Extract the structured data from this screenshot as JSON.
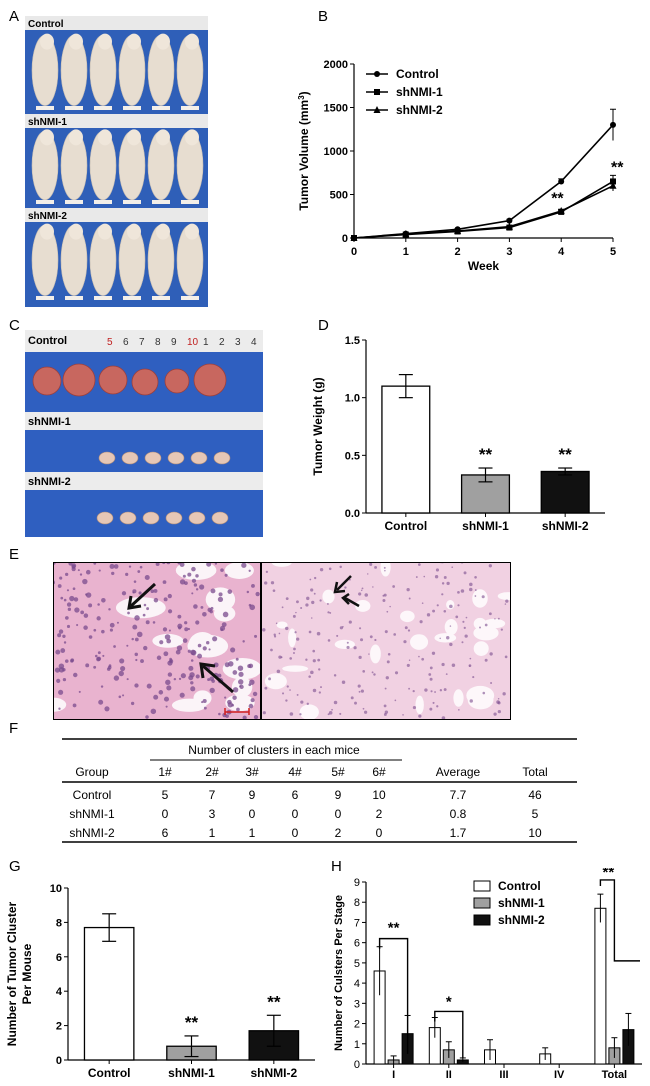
{
  "panels": {
    "a": "A",
    "b": "B",
    "c": "C",
    "d": "D",
    "e": "E",
    "f": "F",
    "g": "G",
    "h": "H"
  },
  "photo_a": {
    "labels": [
      "Control",
      "shNMI-1",
      "shNMI-2"
    ],
    "colors": {
      "backdrop": "#2f5fb8",
      "ruler": "#e9e9e9",
      "mouse": "#e7ddd0"
    }
  },
  "photo_c": {
    "labels": [
      "Control",
      "shNMI-1",
      "shNMI-2"
    ],
    "ruler_numbers": [
      "5",
      "6",
      "7",
      "8",
      "9",
      "10",
      "1",
      "2",
      "3",
      "4"
    ],
    "colors": {
      "backdrop": "#2f5fc0",
      "tumor_large": "#c8675f",
      "tumor_small": "#e6c7b6"
    }
  },
  "histology_e": {
    "colors": {
      "tissue": "#e9b3cf",
      "nuclei": "#7a4b8e",
      "arrow": "#111111"
    }
  },
  "chart_data": [
    {
      "id": "B",
      "type": "line",
      "xlabel": "Week",
      "ylabel": "Tumor Volume (mm",
      "ylabel_sup": "3",
      "ylabel_end": ")",
      "x": [
        0,
        1,
        2,
        3,
        4,
        5
      ],
      "xlim": [
        0,
        5
      ],
      "ylim": [
        0,
        2000
      ],
      "yticks": [
        0,
        500,
        1000,
        1500,
        2000
      ],
      "series": [
        {
          "name": "Control",
          "marker": "circle",
          "values": [
            0,
            50,
            100,
            200,
            650,
            1300
          ],
          "err": [
            0,
            5,
            8,
            15,
            30,
            180
          ]
        },
        {
          "name": "shNMI-1",
          "marker": "square",
          "values": [
            0,
            40,
            75,
            120,
            300,
            650
          ],
          "err": [
            0,
            5,
            6,
            10,
            20,
            70
          ]
        },
        {
          "name": "shNMI-2",
          "marker": "triangle",
          "values": [
            0,
            45,
            80,
            130,
            310,
            600
          ],
          "err": [
            0,
            5,
            6,
            10,
            20,
            60
          ]
        }
      ],
      "annotations": [
        {
          "text": "**",
          "x": 4,
          "y": 330
        },
        {
          "text": "**",
          "x": 5,
          "y": 720
        }
      ],
      "legend": "top-left"
    },
    {
      "id": "D",
      "type": "bar",
      "ylabel": "Tumor Weight (g)",
      "categories": [
        "Control",
        "shNMI-1",
        "shNMI-2"
      ],
      "values": [
        1.1,
        0.33,
        0.36
      ],
      "err": [
        0.1,
        0.06,
        0.03
      ],
      "colors": [
        "#ffffff",
        "#a0a0a0",
        "#111111"
      ],
      "ylim": [
        0,
        1.5
      ],
      "yticks": [
        "0.0",
        "0.5",
        "1.0",
        "1.5"
      ],
      "annotations": [
        "",
        "**",
        "**"
      ]
    },
    {
      "id": "F",
      "type": "table",
      "header_span": "Number of clusters in each mice",
      "columns": [
        "Group",
        "1#",
        "2#",
        "3#",
        "4#",
        "5#",
        "6#",
        "Average",
        "Total"
      ],
      "rows": [
        [
          "Control",
          "5",
          "7",
          "9",
          "6",
          "9",
          "10",
          "7.7",
          "46"
        ],
        [
          "shNMI-1",
          "0",
          "3",
          "0",
          "0",
          "0",
          "2",
          "0.8",
          "5"
        ],
        [
          "shNMI-2",
          "6",
          "1",
          "1",
          "0",
          "2",
          "0",
          "1.7",
          "10"
        ]
      ]
    },
    {
      "id": "G",
      "type": "bar",
      "ylabel_lines": [
        "Number of Tumor Cluster",
        "Per Mouse"
      ],
      "categories": [
        "Control",
        "shNMI-1",
        "shNMI-2"
      ],
      "values": [
        7.7,
        0.8,
        1.7
      ],
      "err": [
        0.8,
        0.6,
        0.9
      ],
      "colors": [
        "#ffffff",
        "#a0a0a0",
        "#111111"
      ],
      "ylim": [
        0,
        10
      ],
      "yticks": [
        0,
        2,
        4,
        6,
        8,
        10
      ],
      "annotations": [
        "",
        "**",
        "**"
      ]
    },
    {
      "id": "H",
      "type": "bar",
      "ylabel": "Number of Culsters Per Stage",
      "categories": [
        "I",
        "II",
        "III",
        "IV",
        "Total"
      ],
      "ylim": [
        0,
        9
      ],
      "yticks": [
        0,
        1,
        2,
        3,
        4,
        5,
        6,
        7,
        8,
        9
      ],
      "series": [
        {
          "name": "Control",
          "color": "#ffffff",
          "values": [
            4.6,
            1.8,
            0.7,
            0.5,
            7.7
          ],
          "err": [
            1.2,
            0.5,
            0.5,
            0.3,
            0.7
          ]
        },
        {
          "name": "shNMI-1",
          "color": "#a0a0a0",
          "values": [
            0.2,
            0.7,
            0,
            0,
            0.8
          ],
          "err": [
            0.2,
            0.4,
            0,
            0,
            0.5
          ]
        },
        {
          "name": "shNMI-2",
          "color": "#111111",
          "values": [
            1.5,
            0.2,
            0,
            0,
            1.7
          ],
          "err": [
            0.9,
            0.1,
            0,
            0,
            0.8
          ]
        }
      ],
      "annotations": [
        "**",
        "*",
        "",
        "",
        "**"
      ],
      "legend": "top-right"
    }
  ]
}
